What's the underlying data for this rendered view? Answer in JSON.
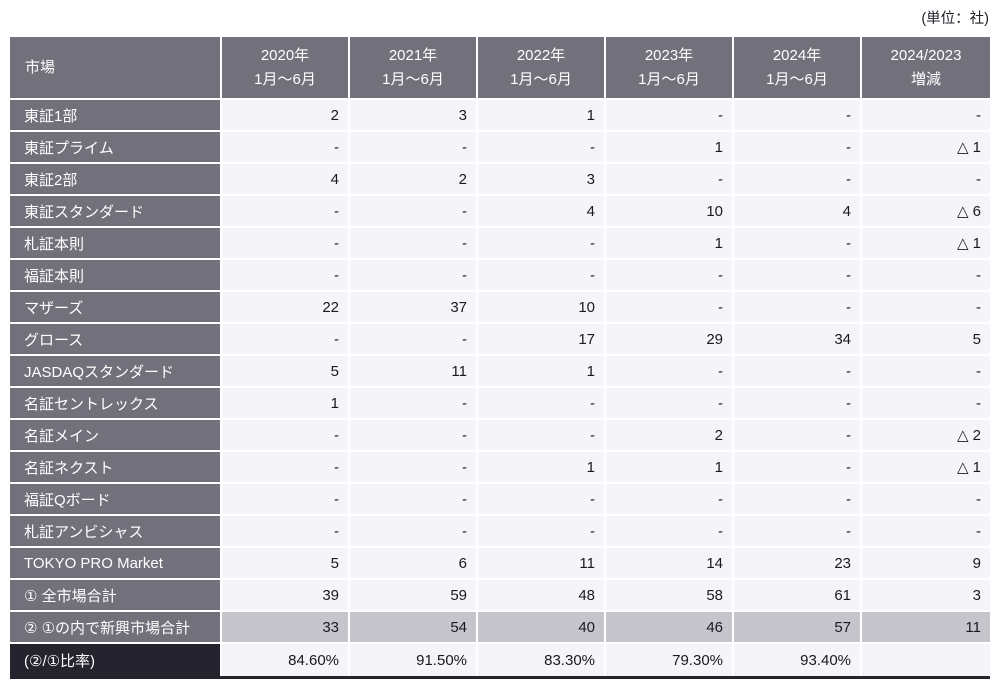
{
  "unit_label": "(単位：社)",
  "table": {
    "header": {
      "market": "市場",
      "columns": [
        {
          "line1": "2020年",
          "line2": "1月〜6月"
        },
        {
          "line1": "2021年",
          "line2": "1月〜6月"
        },
        {
          "line1": "2022年",
          "line2": "1月〜6月"
        },
        {
          "line1": "2023年",
          "line2": "1月〜6月"
        },
        {
          "line1": "2024年",
          "line2": "1月〜6月"
        },
        {
          "line1": "2024/2023",
          "line2": "増減"
        }
      ]
    },
    "rows": [
      {
        "label": "東証1部",
        "values": [
          "2",
          "3",
          "1",
          "-",
          "-",
          "-"
        ],
        "style": "normal"
      },
      {
        "label": "東証プライム",
        "values": [
          "-",
          "-",
          "-",
          "1",
          "-",
          "△ 1"
        ],
        "style": "normal"
      },
      {
        "label": "東証2部",
        "values": [
          "4",
          "2",
          "3",
          "-",
          "-",
          "-"
        ],
        "style": "normal"
      },
      {
        "label": "東証スタンダード",
        "values": [
          "-",
          "-",
          "4",
          "10",
          "4",
          "△ 6"
        ],
        "style": "normal"
      },
      {
        "label": "札証本則",
        "values": [
          "-",
          "-",
          "-",
          "1",
          "-",
          "△ 1"
        ],
        "style": "normal"
      },
      {
        "label": "福証本則",
        "values": [
          "-",
          "-",
          "-",
          "-",
          "-",
          "-"
        ],
        "style": "normal"
      },
      {
        "label": "マザーズ",
        "values": [
          "22",
          "37",
          "10",
          "-",
          "-",
          "-"
        ],
        "style": "normal"
      },
      {
        "label": "グロース",
        "values": [
          "-",
          "-",
          "17",
          "29",
          "34",
          "5"
        ],
        "style": "normal"
      },
      {
        "label": "JASDAQスタンダード",
        "values": [
          "5",
          "11",
          "1",
          "-",
          "-",
          "-"
        ],
        "style": "normal"
      },
      {
        "label": " 名証セントレックス",
        "values": [
          "1",
          "-",
          "-",
          "-",
          "-",
          "-"
        ],
        "style": "normal"
      },
      {
        "label": "名証メイン",
        "values": [
          "-",
          "-",
          "-",
          "2",
          "-",
          "△ 2"
        ],
        "style": "normal"
      },
      {
        "label": "名証ネクスト",
        "values": [
          "-",
          "-",
          "1",
          "1",
          "-",
          "△ 1"
        ],
        "style": "normal"
      },
      {
        "label": "福証Qボード",
        "values": [
          "-",
          "-",
          "-",
          "-",
          "-",
          "-"
        ],
        "style": "normal"
      },
      {
        "label": "札証アンビシャス",
        "values": [
          "-",
          "-",
          "-",
          "-",
          "-",
          "-"
        ],
        "style": "normal"
      },
      {
        "label": "TOKYO PRO Market",
        "values": [
          "5",
          "6",
          "11",
          "14",
          "23",
          "9"
        ],
        "style": "normal"
      },
      {
        "label": "① 全市場合計",
        "values": [
          "39",
          "59",
          "48",
          "58",
          "61",
          "3"
        ],
        "style": "normal"
      },
      {
        "label": "② ①の内で新興市場合計",
        "values": [
          "33",
          "54",
          "40",
          "46",
          "57",
          "11"
        ],
        "style": "highlight"
      },
      {
        "label": " (②/①比率)",
        "values": [
          "84.60%",
          "91.50%",
          "83.30%",
          "79.30%",
          "93.40%",
          ""
        ],
        "style": "dark"
      }
    ],
    "colors": {
      "header_bg": "#71707b",
      "cell_bg": "#f5f4f8",
      "highlight_row_bg": "#c6c5cb",
      "dark_label_bg": "#25232e",
      "grid_gap": "#ffffff",
      "text_dark": "#1a1922",
      "text_light": "#ffffff"
    }
  }
}
